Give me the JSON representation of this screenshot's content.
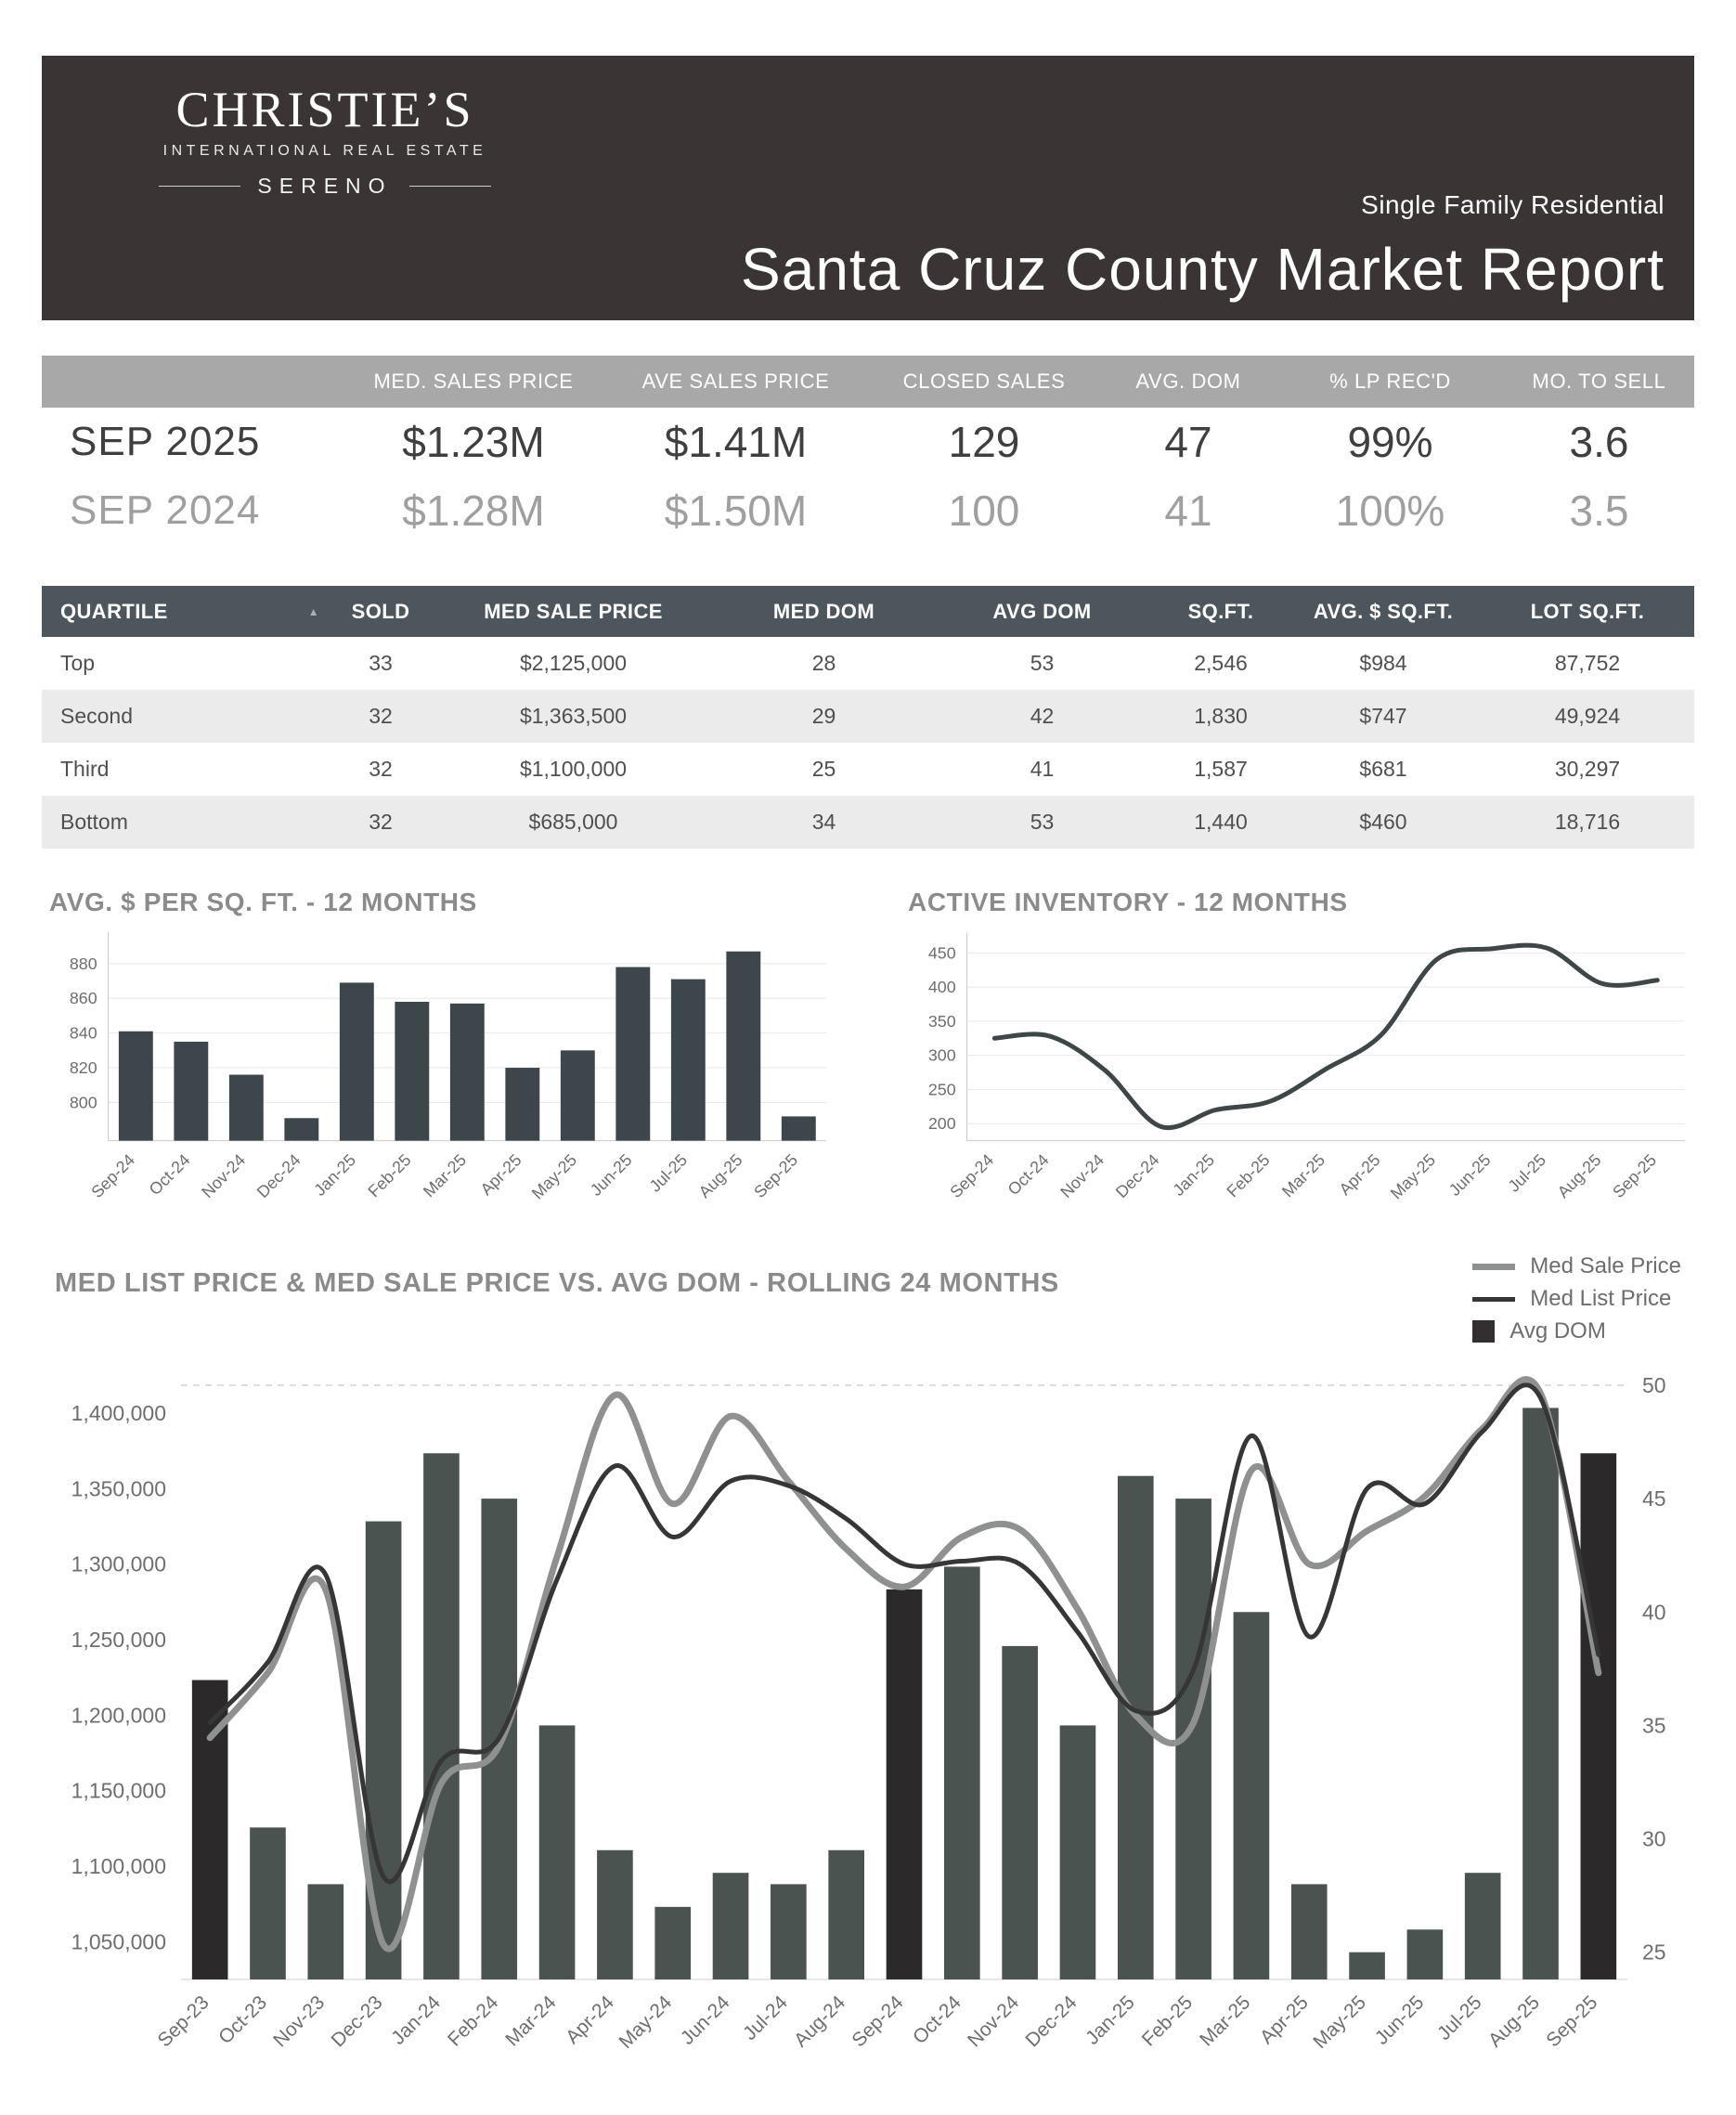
{
  "theme": {
    "header_bg": "#3a3435",
    "summary_band_bg": "#a8a8a8",
    "table_header_bg": "#4d565c",
    "row_alt_bg": "#ebebeb",
    "current_text": "#3f3f3f",
    "prior_text": "#9f9f9f",
    "chart_title": "#8b8b8b"
  },
  "header": {
    "brand": {
      "name": "CHRISTIE’S",
      "tagline": "INTERNATIONAL REAL ESTATE",
      "sub_brand": "SERENO"
    },
    "segment": "Single Family Residential",
    "title": "Santa Cruz County Market Report"
  },
  "summary": {
    "columns": [
      "MED. SALES PRICE",
      "AVE SALES PRICE",
      "CLOSED SALES",
      "AVG. DOM",
      "% LP REC'D",
      "MO. TO SELL"
    ],
    "rows": [
      {
        "label": "SEP 2025",
        "values": [
          "$1.23M",
          "$1.41M",
          "129",
          "47",
          "99%",
          "3.6"
        ]
      },
      {
        "label": "SEP 2024",
        "values": [
          "$1.28M",
          "$1.50M",
          "100",
          "41",
          "100%",
          "3.5"
        ]
      }
    ]
  },
  "quartile_table": {
    "columns": [
      "QUARTILE",
      "SOLD",
      "MED SALE PRICE",
      "MED DOM",
      "AVG DOM",
      "SQ.FT.",
      "AVG. $ SQ.FT.",
      "LOT SQ.FT."
    ],
    "sort_icon": "▲",
    "rows": [
      [
        "Top",
        "33",
        "$2,125,000",
        "28",
        "53",
        "2,546",
        "$984",
        "87,752"
      ],
      [
        "Second",
        "32",
        "$1,363,500",
        "29",
        "42",
        "1,830",
        "$747",
        "49,924"
      ],
      [
        "Third",
        "32",
        "$1,100,000",
        "25",
        "41",
        "1,587",
        "$681",
        "30,297"
      ],
      [
        "Bottom",
        "32",
        "$685,000",
        "34",
        "53",
        "1,440",
        "$460",
        "18,716"
      ]
    ]
  },
  "chart_data": [
    {
      "type": "bar",
      "title": "AVG. $ PER SQ. FT. - 12 MONTHS",
      "categories": [
        "Sep-24",
        "Oct-24",
        "Nov-24",
        "Dec-24",
        "Jan-25",
        "Feb-25",
        "Mar-25",
        "Apr-25",
        "May-25",
        "Jun-25",
        "Jul-25",
        "Aug-25",
        "Sep-25"
      ],
      "values": [
        841,
        835,
        816,
        791,
        869,
        858,
        857,
        820,
        830,
        878,
        871,
        887,
        792
      ],
      "ylim": [
        778,
        896
      ],
      "yticks": [
        800,
        820,
        840,
        860,
        880
      ],
      "bar_color": "#3d464a",
      "grid": true,
      "xlabel": "",
      "ylabel": ""
    },
    {
      "type": "line",
      "title": "ACTIVE INVENTORY - 12 MONTHS",
      "categories": [
        "Sep-24",
        "Oct-24",
        "Nov-24",
        "Dec-24",
        "Jan-25",
        "Feb-25",
        "Mar-25",
        "Apr-25",
        "May-25",
        "Jun-25",
        "Jul-25",
        "Aug-25",
        "Sep-25"
      ],
      "values": [
        325,
        328,
        278,
        196,
        220,
        233,
        280,
        330,
        440,
        456,
        457,
        405,
        410
      ],
      "ylim": [
        175,
        475
      ],
      "yticks": [
        200,
        250,
        300,
        350,
        400,
        450
      ],
      "line_color": "#3f4648",
      "grid": true,
      "xlabel": "",
      "ylabel": ""
    },
    {
      "type": "combo",
      "title": "MED LIST PRICE & MED SALE PRICE VS. AVG DOM  - ROLLING 24 MONTHS",
      "categories": [
        "Sep-23",
        "Oct-23",
        "Nov-23",
        "Dec-23",
        "Jan-24",
        "Feb-24",
        "Mar-24",
        "Apr-24",
        "May-24",
        "Jun-24",
        "Jul-24",
        "Aug-24",
        "Sep-24",
        "Oct-24",
        "Nov-24",
        "Dec-24",
        "Jan-25",
        "Feb-25",
        "Mar-25",
        "Apr-25",
        "May-25",
        "Jun-25",
        "Jul-25",
        "Aug-25",
        "Sep-25"
      ],
      "series": [
        {
          "name": "Med Sale Price",
          "type": "line",
          "axis": "left",
          "color": "#8f9190",
          "width": 7,
          "values": [
            1185000,
            1228000,
            1283000,
            1048000,
            1155000,
            1180000,
            1305000,
            1412000,
            1340000,
            1398000,
            1355000,
            1310000,
            1285000,
            1318000,
            1323000,
            1270000,
            1200000,
            1195000,
            1362000,
            1300000,
            1322000,
            1345000,
            1390000,
            1413000,
            1228000
          ]
        },
        {
          "name": "Med List Price",
          "type": "line",
          "axis": "left",
          "color": "#363636",
          "width": 5,
          "values": [
            1195000,
            1235000,
            1293000,
            1093000,
            1170000,
            1185000,
            1290000,
            1365000,
            1318000,
            1355000,
            1352000,
            1330000,
            1300000,
            1302000,
            1300000,
            1255000,
            1203000,
            1230000,
            1385000,
            1252000,
            1350000,
            1340000,
            1388000,
            1410000,
            1240000
          ]
        },
        {
          "name": "Avg DOM",
          "type": "bar",
          "axis": "right",
          "color": "#4b5350",
          "highlight_color": "#2b292a",
          "values": [
            37,
            30.5,
            28,
            44,
            47,
            45,
            35,
            29.5,
            27,
            28.5,
            28,
            29.5,
            41,
            42,
            38.5,
            35,
            46,
            45,
            40,
            28,
            25,
            26,
            28.5,
            49,
            47
          ]
        }
      ],
      "left_ylim": [
        1025000,
        1432000
      ],
      "left_yticks": [
        1050000,
        1100000,
        1150000,
        1200000,
        1250000,
        1300000,
        1350000,
        1400000
      ],
      "right_ylim": [
        23.8,
        50.9
      ],
      "right_yticks": [
        25,
        30,
        35,
        40,
        45,
        50
      ],
      "highlight_categories": [
        "Sep-23",
        "Sep-24",
        "Sep-25"
      ],
      "legend_position": "top-right",
      "grid": false
    }
  ]
}
